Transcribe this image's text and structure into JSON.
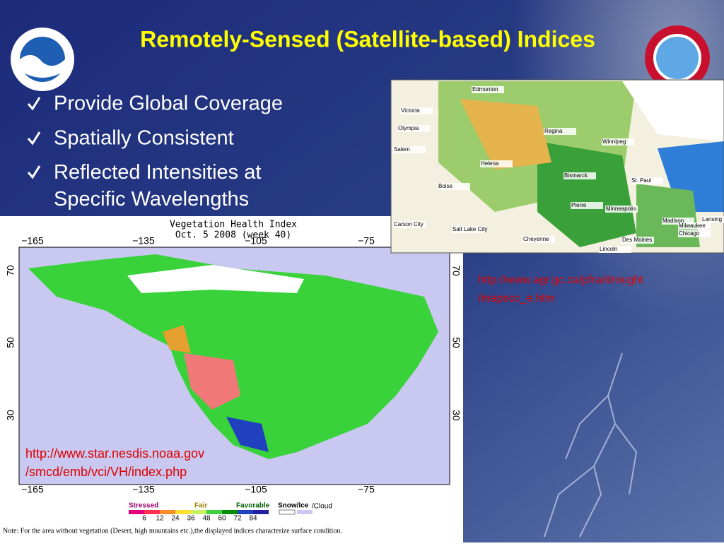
{
  "title": "Remotely-Sensed (Satellite-based) Indices",
  "bullets": [
    "Provide Global Coverage",
    "Spatially Consistent",
    "Reflected Intensities at Specific Wavelengths"
  ],
  "map_left": {
    "title": "Vegetation Health Index",
    "subtitle": "Oct. 5 2008 (week 40)",
    "lon_labels": [
      "−165",
      "−135",
      "−105",
      "−75"
    ],
    "lat_labels": [
      "70",
      "50",
      "30"
    ],
    "legend_classes": [
      "Stressed",
      "Fair",
      "Favorable",
      "Snow/Ice",
      "/Cloud"
    ],
    "legend_values": [
      6,
      12,
      24,
      36,
      48,
      60,
      72,
      84
    ],
    "url": [
      "http://www.star.nesdis.noaa.gov",
      "/smcd/emb/vci/VH/index.php"
    ],
    "note": "Note: For the area without vegetation (Desert, high mountains etc.),the displayed indices characterize surface condition."
  },
  "map_right": {
    "cities": [
      "Edmonton",
      "Victoria",
      "Olympia",
      "Regina",
      "Winnipeg",
      "Salem",
      "Helena",
      "Bismarck",
      "Boise",
      "St. Paul",
      "Pierre",
      "Minneapolis",
      "Carson City",
      "Salt Lake City",
      "Madison",
      "Lansing",
      "Milwaukee",
      "Chicago",
      "Cheyenne",
      "Des Moines",
      "Lincoln"
    ],
    "url": [
      "http://www.agr.gc.ca/pfra/drought",
      "/mapscc_e.htm"
    ]
  }
}
